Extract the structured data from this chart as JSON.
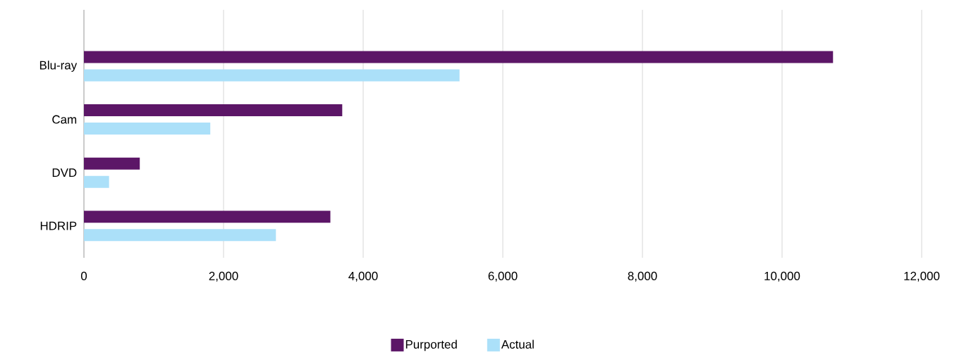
{
  "chart_data": {
    "type": "bar",
    "orientation": "horizontal",
    "categories": [
      "Blu-ray",
      "Cam",
      "DVD",
      "HDRIP"
    ],
    "series": [
      {
        "name": "Purported",
        "color": "#5c1667",
        "values": [
          10730,
          3700,
          800,
          3530
        ]
      },
      {
        "name": "Actual",
        "color": "#abe0f9",
        "values": [
          5380,
          1810,
          360,
          2750
        ]
      }
    ],
    "xlim": [
      0,
      12000
    ],
    "xticks": [
      0,
      {
        "value": 2000,
        "label": "2,000"
      },
      {
        "value": 4000,
        "label": "4,000"
      },
      {
        "value": 6000,
        "label": "6,000"
      },
      {
        "value": 8000,
        "label": "8,000"
      },
      {
        "value": 10000,
        "label": "10,000"
      },
      {
        "value": 12000,
        "label": "12,000"
      }
    ],
    "grid": "x",
    "legend": "bottom"
  }
}
